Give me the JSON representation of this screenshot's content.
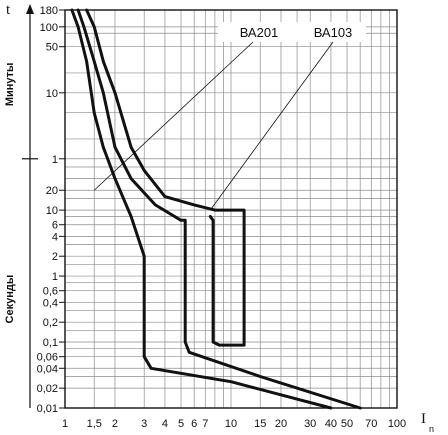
{
  "chart_data": {
    "type": "line",
    "xscale": "log",
    "yscale": "log",
    "grid": true,
    "xlim": [
      1,
      100
    ],
    "x_ticks": [
      1,
      1.5,
      2,
      3,
      4,
      5,
      6,
      7,
      10,
      15,
      20,
      30,
      40,
      50,
      70,
      100
    ],
    "x_tick_labels": [
      "1",
      "1,5",
      "2",
      "3",
      "4",
      "5",
      "6",
      "7",
      "10",
      "15",
      "20",
      "30",
      "40",
      "50",
      "70",
      "100"
    ],
    "x_axis_label": "I",
    "x_axis_subscript": "n",
    "y_axis_symbol": "t",
    "y_groups": [
      {
        "label": "Минуты",
        "tick_labels": [
          "180",
          "100",
          "50",
          "10",
          "1"
        ],
        "values_min": [
          180,
          100,
          50,
          10,
          1
        ]
      },
      {
        "label": "Секунды",
        "tick_labels": [
          "20",
          "10",
          "6",
          "4",
          "2",
          "1",
          "0,6",
          "0,4",
          "0,2",
          "0,1",
          "0,06",
          "0,04",
          "0,02",
          "0,01"
        ],
        "values_s": [
          20,
          10,
          6,
          4,
          2,
          1,
          0.6,
          0.4,
          0.2,
          0.1,
          0.06,
          0.04,
          0.02,
          0.01
        ]
      }
    ],
    "annotations": [
      {
        "text": "ВА201",
        "points_to": [
          1.5,
          20
        ]
      },
      {
        "text": "ВА103",
        "points_to": [
          7.5,
          10
        ]
      }
    ],
    "series": [
      {
        "points": [
          [
            1.1,
            10800
          ],
          [
            1.2,
            6000
          ],
          [
            1.35,
            1800
          ],
          [
            1.5,
            300
          ],
          [
            1.7,
            90
          ],
          [
            2,
            30
          ],
          [
            2.5,
            8
          ],
          [
            3,
            2
          ],
          [
            3,
            0.06
          ],
          [
            3.3,
            0.04
          ],
          [
            10,
            0.025
          ],
          [
            40,
            0.01
          ]
        ]
      },
      {
        "points": [
          [
            1.2,
            10800
          ],
          [
            1.3,
            6000
          ],
          [
            1.5,
            1800
          ],
          [
            1.7,
            600
          ],
          [
            2,
            90
          ],
          [
            2.5,
            30
          ],
          [
            3.5,
            12
          ],
          [
            5,
            7
          ],
          [
            5.3,
            7
          ],
          [
            5.3,
            0.1
          ],
          [
            5.6,
            0.07
          ],
          [
            15,
            0.03
          ],
          [
            60,
            0.01
          ]
        ]
      },
      {
        "points": [
          [
            1.35,
            10800
          ],
          [
            1.5,
            6000
          ],
          [
            1.7,
            1800
          ],
          [
            2,
            600
          ],
          [
            2.5,
            90
          ],
          [
            3,
            40
          ],
          [
            4,
            16
          ],
          [
            6,
            12
          ],
          [
            8,
            10
          ],
          [
            12,
            10
          ],
          [
            12,
            0.09
          ],
          [
            8.5,
            0.09
          ],
          [
            7.8,
            0.1
          ],
          [
            7.8,
            7
          ],
          [
            7.5,
            8
          ]
        ]
      }
    ]
  }
}
